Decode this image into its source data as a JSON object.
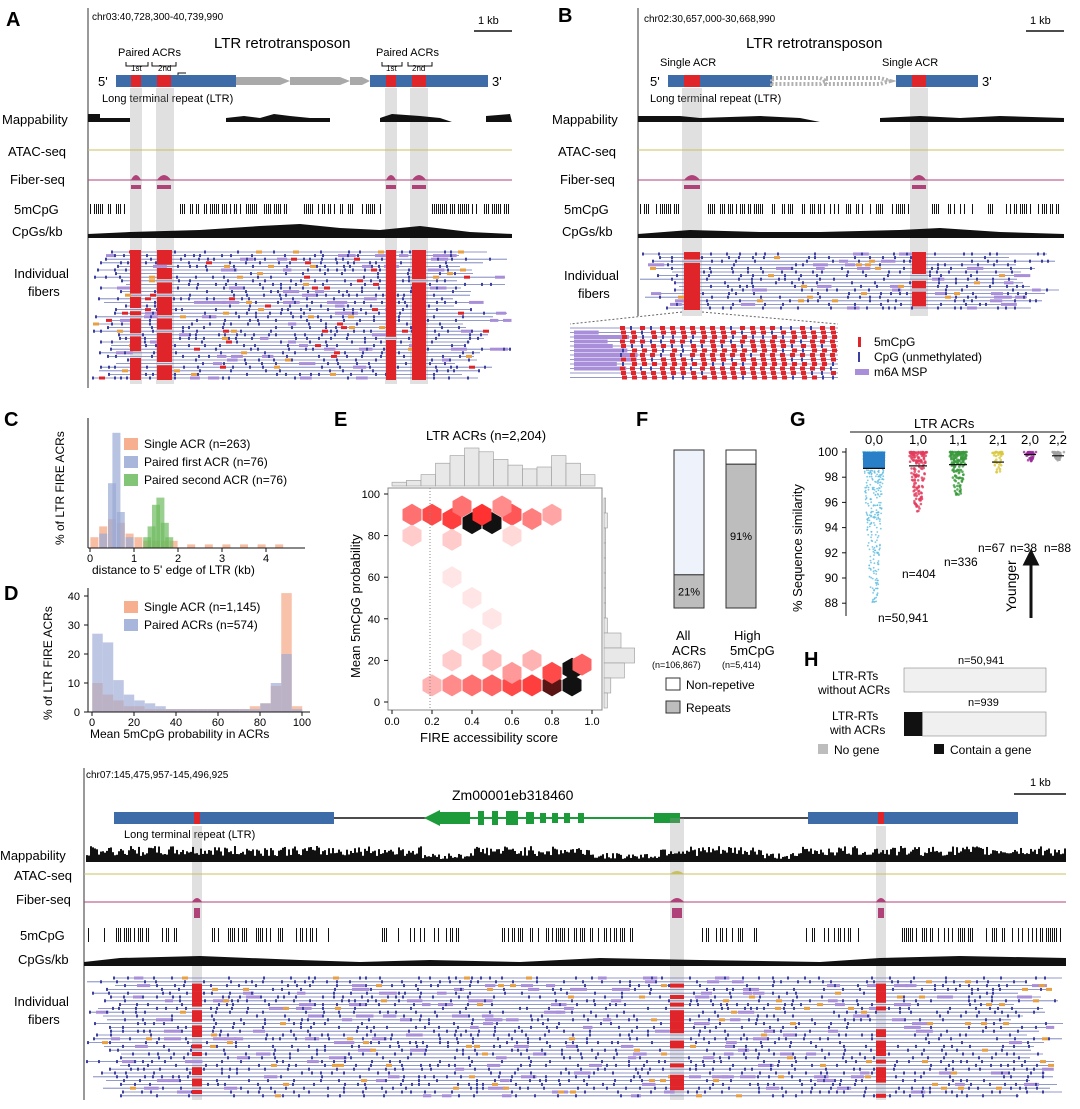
{
  "panel_letters": [
    "A",
    "B",
    "C",
    "D",
    "E",
    "F",
    "G",
    "H"
  ],
  "track_labels": {
    "mappability": "Mappability",
    "atac": "ATAC-seq",
    "fiber": "Fiber-seq",
    "mcpg": "5mCpG",
    "cpgs": "CpGs/kb",
    "individual": "Individual",
    "fibers": "fibers"
  },
  "panel_a": {
    "coords": "chr03:40,728,300-40,739,990",
    "scale": "1 kb",
    "title": "LTR retrotransposon",
    "paired_left": "Paired ACRs",
    "paired_right": "Paired ACRs",
    "first": "1st",
    "second": "2nd",
    "first_r": "1st",
    "second_r": "2nd",
    "five": "5'",
    "three": "3'",
    "ltr": "Long terminal repeat (LTR)"
  },
  "panel_b": {
    "coords": "chr02:30,657,000-30,668,990",
    "scale": "1 kb",
    "title": "LTR retrotransposon",
    "single_left": "Single ACR",
    "single_right": "Single ACR",
    "five": "5'",
    "three": "3'",
    "ltr": "Long terminal repeat (LTR)",
    "legend": [
      "5mCpG",
      "CpG (unmethylated)",
      "m6A MSP"
    ]
  },
  "panel_c": {
    "ylabel": "% of LTR FIRE ACRs",
    "xlabel": "distance to 5' edge of LTR (kb)",
    "legend": [
      "Single ACR (n=263)",
      "Paired first ACR (n=76)",
      "Paired second ACR (n=76)"
    ],
    "xticks": [
      "0",
      "1",
      "2",
      "3",
      "4"
    ]
  },
  "panel_d": {
    "ylabel": "% of LTR FIRE ACRs",
    "xlabel": "Mean 5mCpG probability in ACRs",
    "legend": [
      "Single ACR (n=1,145)",
      "Paired ACRs (n=574)"
    ],
    "xticks": [
      "0",
      "20",
      "40",
      "60",
      "80",
      "100"
    ],
    "yticks": [
      "0",
      "10",
      "20",
      "30",
      "40"
    ]
  },
  "panel_e": {
    "title": "LTR ACRs (n=2,204)",
    "ylabel": "Mean 5mCpG probability",
    "xlabel": "FIRE accessibility score",
    "xticks": [
      "0.0",
      "0.2",
      "0.4",
      "0.6",
      "0.8",
      "1.0"
    ],
    "yticks": [
      "0",
      "20",
      "40",
      "60",
      "80",
      "100"
    ]
  },
  "panel_f": {
    "bar1_pct": "21%",
    "bar2_pct": "91%",
    "bar1_label1": "All",
    "bar1_label2": "ACRs",
    "bar1_n": "(n=106,867)",
    "bar2_label1": "High",
    "bar2_label2": "5mCpG",
    "bar2_n": "(n=5,414)",
    "legend": [
      "Non-repetive",
      "Repeats"
    ]
  },
  "panel_g": {
    "title": "LTR ACRs",
    "groups": [
      "0,0",
      "1,0",
      "1,1",
      "2,1",
      "2,0",
      "2,2"
    ],
    "ns": [
      "n=50,941",
      "n=404",
      "n=336",
      "n=67",
      "n=38",
      "n=88"
    ],
    "ylabel": "% Sequence similarity",
    "yticks": [
      "88",
      "90",
      "92",
      "94",
      "96",
      "98",
      "100"
    ],
    "younger": "Younger"
  },
  "panel_h": {
    "row1_l1": "LTR-RTs",
    "row1_l2": "without ACRs",
    "row1_n": "n=50,941",
    "row2_l1": "LTR-RTs",
    "row2_l2": "with ACRs",
    "row2_n": "n=939",
    "legend": [
      "No gene",
      "Contain a gene"
    ]
  },
  "panel_bottom": {
    "coords": "chr07:145,475,957-145,496,925",
    "scale": "1 kb",
    "gene": "Zm00001eb318460",
    "ltr": "Long terminal repeat (LTR)"
  },
  "colors": {
    "ltr_blue": "#3d6ca8",
    "acr_red": "#e0252a",
    "fiber_magenta": "#b0427a",
    "cpg_blue": "#3b3fa0",
    "m6a_purple": "#a98fd9",
    "gene_green": "#1d9a3a",
    "single_orange": "#f4a27c",
    "paired_blue": "#9aa9d6",
    "paired_green": "#6dbb5f"
  },
  "chart_data": [
    {
      "type": "bar",
      "panel": "C",
      "title": "",
      "xlabel": "distance to 5' edge of LTR (kb)",
      "ylabel": "% of LTR FIRE ACRs",
      "xlim": [
        0,
        4.5
      ],
      "series": [
        {
          "name": "Single ACR (n=263)",
          "x": [
            0.1,
            0.3,
            0.5,
            0.7,
            0.9,
            1.1,
            1.3,
            1.5,
            1.7,
            1.9,
            2.3,
            2.7,
            3.1,
            3.5,
            3.9,
            4.3
          ],
          "values": [
            3,
            6,
            8,
            7,
            4,
            3,
            2,
            2,
            2,
            2,
            1,
            1,
            1,
            1,
            1,
            1
          ]
        },
        {
          "name": "Paired first ACR (n=76)",
          "x": [
            0.3,
            0.5,
            0.6,
            0.7,
            0.9
          ],
          "values": [
            4,
            18,
            32,
            10,
            3
          ]
        },
        {
          "name": "Paired second ACR (n=76)",
          "x": [
            1.3,
            1.4,
            1.5,
            1.6,
            1.7,
            1.8
          ],
          "values": [
            3,
            6,
            12,
            14,
            7,
            3
          ]
        }
      ]
    },
    {
      "type": "bar",
      "panel": "D",
      "xlabel": "Mean 5mCpG probability in ACRs",
      "ylabel": "% of LTR FIRE ACRs",
      "xlim": [
        0,
        100
      ],
      "ylim": [
        0,
        42
      ],
      "series": [
        {
          "name": "Single ACR (n=1,145)",
          "x": [
            2.5,
            7.5,
            12.5,
            17.5,
            22.5,
            27.5,
            32.5,
            37.5,
            42.5,
            47.5,
            52.5,
            57.5,
            62.5,
            67.5,
            72.5,
            77.5,
            82.5,
            87.5,
            92.5,
            97.5
          ],
          "values": [
            10,
            6,
            4,
            2,
            2,
            1,
            1,
            1,
            1,
            1,
            1,
            1,
            1,
            1,
            1,
            2,
            3,
            9,
            41,
            2
          ]
        },
        {
          "name": "Paired ACRs (n=574)",
          "x": [
            2.5,
            7.5,
            12.5,
            17.5,
            22.5,
            27.5,
            32.5,
            37.5,
            42.5,
            47.5,
            52.5,
            57.5,
            62.5,
            67.5,
            72.5,
            77.5,
            82.5,
            87.5,
            92.5,
            97.5
          ],
          "values": [
            27,
            24,
            11,
            6,
            4,
            3,
            2,
            1,
            1,
            1,
            1,
            1,
            1,
            1,
            1,
            1,
            3,
            10,
            20,
            1
          ]
        }
      ]
    },
    {
      "type": "heatmap",
      "panel": "E",
      "title": "LTR ACRs (n=2,204)",
      "xlabel": "FIRE accessibility score",
      "ylabel": "Mean 5mCpG probability",
      "xlim": [
        0,
        1
      ],
      "ylim": [
        0,
        100
      ],
      "cells": [
        {
          "x": 0.1,
          "y": 90,
          "v": 0.55
        },
        {
          "x": 0.2,
          "y": 90,
          "v": 0.7
        },
        {
          "x": 0.3,
          "y": 88,
          "v": 0.75
        },
        {
          "x": 0.4,
          "y": 86,
          "v": 1.0
        },
        {
          "x": 0.5,
          "y": 86,
          "v": 0.95
        },
        {
          "x": 0.45,
          "y": 90,
          "v": 0.8
        },
        {
          "x": 0.6,
          "y": 90,
          "v": 0.65
        },
        {
          "x": 0.7,
          "y": 88,
          "v": 0.5
        },
        {
          "x": 0.8,
          "y": 90,
          "v": 0.35
        },
        {
          "x": 0.35,
          "y": 94,
          "v": 0.55
        },
        {
          "x": 0.55,
          "y": 94,
          "v": 0.45
        },
        {
          "x": 0.1,
          "y": 80,
          "v": 0.2
        },
        {
          "x": 0.3,
          "y": 78,
          "v": 0.2
        },
        {
          "x": 0.6,
          "y": 80,
          "v": 0.15
        },
        {
          "x": 0.3,
          "y": 60,
          "v": 0.1
        },
        {
          "x": 0.4,
          "y": 50,
          "v": 0.1
        },
        {
          "x": 0.5,
          "y": 40,
          "v": 0.1
        },
        {
          "x": 0.4,
          "y": 30,
          "v": 0.12
        },
        {
          "x": 0.3,
          "y": 20,
          "v": 0.2
        },
        {
          "x": 0.5,
          "y": 20,
          "v": 0.25
        },
        {
          "x": 0.7,
          "y": 20,
          "v": 0.3
        },
        {
          "x": 0.3,
          "y": 8,
          "v": 0.45
        },
        {
          "x": 0.4,
          "y": 8,
          "v": 0.55
        },
        {
          "x": 0.5,
          "y": 8,
          "v": 0.6
        },
        {
          "x": 0.6,
          "y": 8,
          "v": 0.7
        },
        {
          "x": 0.7,
          "y": 8,
          "v": 0.75
        },
        {
          "x": 0.8,
          "y": 8,
          "v": 0.85
        },
        {
          "x": 0.9,
          "y": 8,
          "v": 1.0
        },
        {
          "x": 0.9,
          "y": 16,
          "v": 0.95
        },
        {
          "x": 0.8,
          "y": 14,
          "v": 0.7
        },
        {
          "x": 0.95,
          "y": 18,
          "v": 0.6
        },
        {
          "x": 0.2,
          "y": 8,
          "v": 0.3
        },
        {
          "x": 0.6,
          "y": 14,
          "v": 0.4
        }
      ],
      "top_hist": [
        0.1,
        0.15,
        0.3,
        0.6,
        0.8,
        1.0,
        0.9,
        0.7,
        0.55,
        0.45,
        0.5,
        0.8,
        0.6,
        0.3
      ],
      "right_hist": [
        0.05,
        0.1,
        0.05,
        0.05,
        0.05,
        0.05,
        0.05,
        0.05,
        0.1,
        0.5,
        0.9,
        0.6,
        0.2,
        0.1
      ]
    },
    {
      "type": "bar",
      "panel": "F",
      "categories": [
        "All ACRs",
        "High 5mCpG"
      ],
      "series": [
        {
          "name": "Repeats",
          "values": [
            21,
            91
          ]
        },
        {
          "name": "Non-repetive",
          "values": [
            79,
            9
          ]
        }
      ],
      "ylim": [
        0,
        100
      ]
    },
    {
      "type": "scatter",
      "panel": "G",
      "title": "LTR ACRs",
      "ylabel": "% Sequence similarity",
      "ylim": [
        87.5,
        100.5
      ],
      "categories": [
        "0,0",
        "1,0",
        "1,1",
        "2,1",
        "2,0",
        "2,2"
      ],
      "n": [
        50941,
        404,
        336,
        67,
        38,
        88
      ],
      "y_min": [
        88,
        95.2,
        96.6,
        98.3,
        99.2,
        99.3
      ],
      "median": [
        98.7,
        98.9,
        99.0,
        99.2,
        99.8,
        99.7
      ]
    },
    {
      "type": "bar",
      "panel": "H",
      "categories": [
        "LTR-RTs without ACRs",
        "LTR-RTs with ACRs"
      ],
      "series": [
        {
          "name": "No gene",
          "values": [
            100,
            87
          ]
        },
        {
          "name": "Contain a gene",
          "values": [
            0,
            13
          ]
        }
      ]
    }
  ]
}
